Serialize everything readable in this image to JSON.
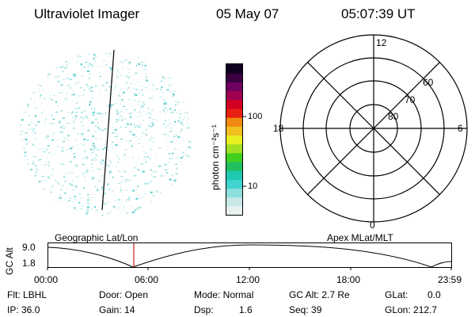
{
  "header": {
    "instrument": "Ultraviolet Imager",
    "date": "05 May 07",
    "time": "05:07:39 UT"
  },
  "colorbar": {
    "unit_label": "photon cm⁻²s⁻¹",
    "ticks": [
      "100",
      "10"
    ],
    "colors": [
      "#e8f0f0",
      "#c8e8e8",
      "#8ee0de",
      "#40d4d0",
      "#20c8b0",
      "#20c060",
      "#40d020",
      "#a0e020",
      "#e8f020",
      "#f0c020",
      "#f08a10",
      "#e82010",
      "#d00020",
      "#a00050",
      "#700060",
      "#3a0040",
      "#100020"
    ]
  },
  "polar_plot": {
    "mlt_labels": [
      "12",
      "18",
      "6",
      "0"
    ],
    "lat_labels": [
      "60",
      "70",
      "80"
    ]
  },
  "timeline": {
    "left_caption": "Geographic Lat/Lon",
    "right_caption": "Apex MLat/MLT",
    "axis_title": "GC Alt",
    "y_max": "9.0",
    "y_min": "1.8",
    "x_ticks": [
      "00:00",
      "06:00",
      "12:00",
      "18:00",
      "23:59"
    ],
    "cursor_color": "#cc2020"
  },
  "info": {
    "flt": "Flt: LBHL",
    "ip": "IP: 36.0",
    "door": "Door: Open",
    "gain": "Gain: 14",
    "mode": "Mode: Normal",
    "dsp_label": "Dsp:",
    "dsp_value": "1.6",
    "gc_alt": "GC Alt: 2.7 Re",
    "seq": "Seq: 39",
    "glat_label": "GLat:",
    "glat_value": "0.0",
    "glon": "GLon: 212.7"
  }
}
